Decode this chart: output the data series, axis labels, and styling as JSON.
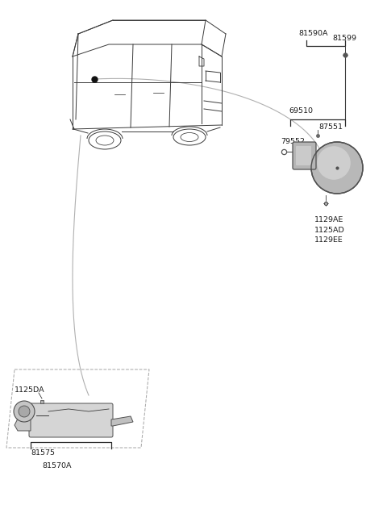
{
  "bg_color": "#ffffff",
  "fig_width": 4.8,
  "fig_height": 6.57,
  "dpi": 100,
  "parts": {
    "upper_right": {
      "label_81590A": "81590A",
      "label_81599": "81599",
      "label_69510": "69510",
      "label_87551": "87551",
      "label_79552": "79552",
      "label_bottom": "1129AE\n1125AD\n1129EE"
    },
    "lower_left": {
      "label_1125DA": "1125DA",
      "label_81575": "81575",
      "label_81570A": "81570A"
    }
  },
  "colors": {
    "line": "#3a3a3a",
    "part_fill": "#c8c8c8",
    "part_fill2": "#b0b0b0",
    "part_stroke": "#505050",
    "text": "#1a1a1a",
    "dashed": "#909090",
    "bracket": "#2a2a2a"
  }
}
